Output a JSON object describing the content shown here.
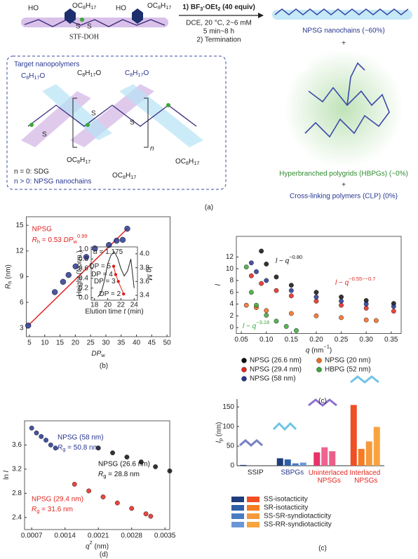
{
  "scheme": {
    "monomer": {
      "ho_left": "HO",
      "oc_top": "OC8H17",
      "ho_right": "HO",
      "oc_right": "OC8H17",
      "s_labels": [
        "S",
        "S"
      ],
      "name": "STF-DOH"
    },
    "conditions": [
      "1) BF3·OEt2 (40 equiv)",
      "DCE, 20 °C, 2~6 mM",
      "5 min~8 h",
      "2) Termination"
    ],
    "products": [
      "NPSG nanochains (~60%)",
      "+",
      "Hyperbranched polygrids (HBPGs) (~0%)",
      "+",
      "Cross-linking polymers (CLP) (0%)"
    ],
    "box": {
      "title": "Target nanopolymers",
      "top_chains": [
        "C8H17O",
        "C8H17O",
        "C8H17O"
      ],
      "bottom_chains": [
        "OC8H17",
        "OC8H17",
        "OC8H17"
      ],
      "s_labels": [
        "S",
        "S",
        "S"
      ],
      "n": "n",
      "legend": [
        "n = 0: SDG",
        "n > 0: NPSG nanochains"
      ]
    }
  },
  "panel_labels": [
    "(a)",
    "(b)",
    "(c)",
    "(d)",
    "(c)"
  ],
  "chart_data": [
    {
      "type": "scatter",
      "x_label": [
        {
          "text": "DP",
          "style": "italic"
        },
        {
          "text": "w",
          "style": "sub"
        }
      ],
      "y_label": [
        {
          "text": "R",
          "style": "italic"
        },
        {
          "text": "h",
          "style": "sub"
        },
        {
          "text": " (nm)",
          "style": "normal"
        }
      ],
      "xlim": [
        4,
        51
      ],
      "xticks": [
        5,
        10,
        15,
        20,
        25,
        30,
        35,
        40,
        45,
        50
      ],
      "ylim": [
        2,
        16
      ],
      "yticks": [
        3,
        6,
        9,
        12,
        15
      ],
      "series": [
        {
          "name": "NPSG",
          "color": "#2b3990",
          "x": [
            4.6,
            13.3,
            16,
            17.8,
            20.1,
            23.6,
            26.4,
            31,
            33.5,
            35.5,
            37
          ],
          "values": [
            3.3,
            7.2,
            8.4,
            9.2,
            10.2,
            11.3,
            12.3,
            12.7,
            13.2,
            13.3,
            14.6
          ]
        }
      ],
      "fit": {
        "color": "#e02020",
        "x": [
          4.6,
          37
        ],
        "values": [
          3.3,
          14.6
        ]
      },
      "annotations": [
        {
          "color": "#e02020",
          "segments": [
            {
              "text": "R",
              "style": "italic"
            },
            {
              "text": "h",
              "style": "sub"
            },
            {
              "text": " = 0.53 ",
              "style": "normal"
            },
            {
              "text": "DP",
              "style": "italic"
            },
            {
              "text": "w",
              "style": "sub"
            },
            {
              "text": "0.99",
              "style": "sup"
            }
          ]
        }
      ],
      "inset": {
        "x_label": [
          {
            "text": "Elution time ",
            "style": "normal"
          },
          {
            "text": "t",
            "style": "italic"
          },
          {
            "text": " (min)",
            "style": "normal"
          }
        ],
        "y_label": [
          {
            "text": "Height (Norm.)",
            "style": "normal"
          }
        ],
        "y2_label": [
          {
            "text": "lg ",
            "style": "normal"
          },
          {
            "text": "M",
            "style": "italic"
          }
        ],
        "xlim": [
          17.5,
          24.5
        ],
        "xticks": [
          18,
          20,
          22,
          24
        ],
        "ylim": [
          -0.05,
          1.05
        ],
        "yticks": [
          {
            "value": 0,
            "label": "0.0"
          },
          0.2,
          0.4,
          0.6,
          0.8,
          {
            "value": 1,
            "label": "1.0"
          }
        ],
        "y2lim": [
          3.33,
          4.1
        ],
        "y2ticks": [
          3.4,
          3.6,
          3.8,
          {
            "value": 4,
            "label": "4.0"
          }
        ],
        "annotation": [
          {
            "text": "α",
            "style": "italic"
          },
          {
            "text": " = 1.175",
            "style": "normal"
          }
        ],
        "curve": {
          "color": "#222222",
          "x": [
            18.5,
            19,
            19.5,
            20,
            20.5,
            21,
            21.5,
            22,
            22.5,
            23,
            23.5,
            24
          ],
          "values": [
            0.02,
            0.1,
            0.35,
            0.7,
            0.88,
            0.95,
            0.82,
            0.6,
            0.45,
            0.55,
            0.8,
            0.2
          ]
        },
        "points": {
          "color": "#e02020",
          "axis": "y2",
          "x": [
            20.9,
            21.2,
            21.6,
            22.4
          ],
          "values": [
            3.82,
            3.7,
            3.6,
            3.42
          ],
          "labels": [
            "DP = 5",
            "DP = 4",
            "DP = 3",
            "DP = 2"
          ]
        }
      }
    },
    {
      "type": "scatter",
      "x_label": [
        {
          "text": "q",
          "style": "italic"
        },
        {
          "text": " (nm",
          "style": "normal"
        },
        {
          "text": "−1",
          "style": "sup"
        },
        {
          "text": ")",
          "style": "normal"
        }
      ],
      "y_label": [
        {
          "text": "l",
          "style": "italic"
        }
      ],
      "xlim": [
        0.04,
        0.37
      ],
      "xticks": [
        0.05,
        {
          "value": 0.1,
          "label": "0.10"
        },
        0.15,
        {
          "value": 0.2,
          "label": "0.20"
        },
        0.25,
        {
          "value": 0.3,
          "label": "0.30"
        },
        0.35
      ],
      "ylim": [
        -1,
        15.5
      ],
      "yticks": [
        0,
        2,
        4,
        6,
        8,
        10,
        12
      ],
      "series": [
        {
          "name": "NPSG (26.6 nm)",
          "color": "#111111",
          "x": [
            0.09,
            0.1,
            0.12,
            0.15,
            0.2,
            0.25,
            0.3,
            0.355
          ],
          "values": [
            13,
            10.8,
            8.6,
            7.2,
            6,
            5.2,
            4.6,
            4.1
          ]
        },
        {
          "name": "NPSG (29.4 nm)",
          "color": "#e3261f",
          "x": [
            0.07,
            0.09,
            0.12,
            0.15,
            0.2,
            0.25,
            0.3,
            0.355
          ],
          "values": [
            8.8,
            7.5,
            6.3,
            5.4,
            4.5,
            3.8,
            3.3,
            2.8
          ]
        },
        {
          "name": "NPSG (58 nm)",
          "color": "#26358f",
          "x": [
            0.07,
            0.08,
            0.1,
            0.15,
            0.2,
            0.25,
            0.3,
            0.355
          ],
          "values": [
            11,
            9.5,
            8,
            6.3,
            5.2,
            4.5,
            4,
            3.6
          ]
        },
        {
          "name": "NPSG (20 nm)",
          "color": "#f26a1f",
          "x": [
            0.06,
            0.08,
            0.1,
            0.15,
            0.2,
            0.25,
            0.3,
            0.32
          ],
          "values": [
            3.8,
            3.4,
            2.9,
            2.4,
            2,
            1.7,
            1.3,
            1.2
          ]
        },
        {
          "name": "HBPG (52 nm)",
          "color": "#3aa838",
          "x": [
            0.06,
            0.07,
            0.08,
            0.1,
            0.12,
            0.14,
            0.16
          ],
          "values": [
            10.3,
            6,
            3.8,
            2.1,
            1.1,
            0.2,
            -0.5
          ]
        }
      ],
      "annotations": [
        {
          "color": "#111111",
          "segments": [
            {
              "text": "l",
              "style": "italic"
            },
            {
              "text": " ~ ",
              "style": "normal"
            },
            {
              "text": "q",
              "style": "italic"
            },
            {
              "text": "−0.80",
              "style": "sup"
            }
          ]
        },
        {
          "color": "#e3261f",
          "segments": [
            {
              "text": "l",
              "style": "italic"
            },
            {
              "text": " ~ ",
              "style": "normal"
            },
            {
              "text": "q",
              "style": "italic"
            },
            {
              "text": "−0.55~−0.7",
              "style": "sup"
            }
          ]
        },
        {
          "color": "#3aa838",
          "segments": [
            {
              "text": "l",
              "style": "italic"
            },
            {
              "text": " ~ ",
              "style": "normal"
            },
            {
              "text": "q",
              "style": "italic"
            },
            {
              "text": "−3.18",
              "style": "sup"
            }
          ]
        }
      ]
    },
    {
      "type": "scatter",
      "x_label": [
        {
          "text": "q",
          "style": "italic"
        },
        {
          "text": "2",
          "style": "sup"
        },
        {
          "text": " (nm)",
          "style": "normal"
        }
      ],
      "y_label": [
        {
          "text": "ln ",
          "style": "normal"
        },
        {
          "text": "l",
          "style": "italic"
        }
      ],
      "xlim": [
        0.00055,
        0.0036
      ],
      "xticks": [
        0.0007,
        0.0014,
        0.0021,
        0.0028,
        0.0035
      ],
      "ylim": [
        2.2,
        4.0
      ],
      "yticks": [
        2.4,
        2.8,
        3.2,
        3.6
      ],
      "series": [
        {
          "name": "NPSG (58 nm)",
          "color": "#26358f",
          "x": [
            0.0007,
            0.0008,
            0.0009,
            0.001,
            0.0011,
            0.0012
          ],
          "values": [
            3.88,
            3.8,
            3.74,
            3.68,
            3.6,
            3.55
          ],
          "fit_label": [
            {
              "text": "R",
              "style": "italic"
            },
            {
              "text": "g",
              "style": "sub"
            },
            {
              "text": " = 50.8 nm",
              "style": "normal"
            }
          ]
        },
        {
          "name": "NPSG (26.6 nm)",
          "color": "#111111",
          "x": [
            0.0021,
            0.0024,
            0.0027,
            0.003,
            0.0033,
            0.0036
          ],
          "values": [
            3.55,
            3.47,
            3.4,
            3.32,
            3.24,
            3.17
          ],
          "fit_label": [
            {
              "text": "R",
              "style": "italic"
            },
            {
              "text": "g",
              "style": "sub"
            },
            {
              "text": " = 28.8 nm",
              "style": "normal"
            }
          ]
        },
        {
          "name": "NPSG (29.4 nm)",
          "color": "#e3261f",
          "x": [
            0.0016,
            0.0019,
            0.0022,
            0.0025,
            0.0028,
            0.0031,
            0.0032
          ],
          "values": [
            2.95,
            2.84,
            2.74,
            2.64,
            2.55,
            2.46,
            2.42
          ],
          "fit_label": [
            {
              "text": "R",
              "style": "italic"
            },
            {
              "text": "g",
              "style": "sub"
            },
            {
              "text": " = 31.6 nm",
              "style": "normal"
            }
          ]
        }
      ]
    },
    {
      "type": "bar",
      "y_label": [
        {
          "text": "l",
          "style": "italic"
        },
        {
          "text": "p",
          "style": "sub"
        },
        {
          "text": " (nm)",
          "style": "normal"
        }
      ],
      "ylim": [
        0,
        170
      ],
      "yticks": [
        0,
        50,
        100,
        150
      ],
      "categories": [
        "SSIP",
        "SBPGs",
        "Uninterlaced NPSGs",
        "Interlaced NPSGs"
      ],
      "category_colors": [
        "#222222",
        "#26358f",
        "#e3261f",
        "#e3261f"
      ],
      "series": [
        {
          "name": "SS-isotacticity",
          "colors": [
            "#1f3d7a",
            "#1f3d7a",
            "#e8336a",
            "#f04e23"
          ],
          "values": [
            2,
            19,
            34,
            155
          ]
        },
        {
          "name": "SR-isotacticity",
          "colors": [
            "#2f5fa8",
            "#2f5fa8",
            "#f06292",
            "#f57c20"
          ],
          "values": [
            null,
            16,
            47,
            43
          ]
        },
        {
          "name": "SS-SR-syndiotacticity",
          "colors": [
            "#4a7cc2",
            "#4a7cc2",
            "#ea5f8a",
            "#f59a3a"
          ],
          "values": [
            null,
            6,
            37,
            62
          ]
        },
        {
          "name": "SS-RR-syndiotacticity",
          "colors": [
            "#6a96d6",
            "#6a96d6",
            "#f48fb1",
            "#f7a43f"
          ],
          "values": [
            null,
            8,
            null,
            99
          ]
        }
      ]
    }
  ]
}
